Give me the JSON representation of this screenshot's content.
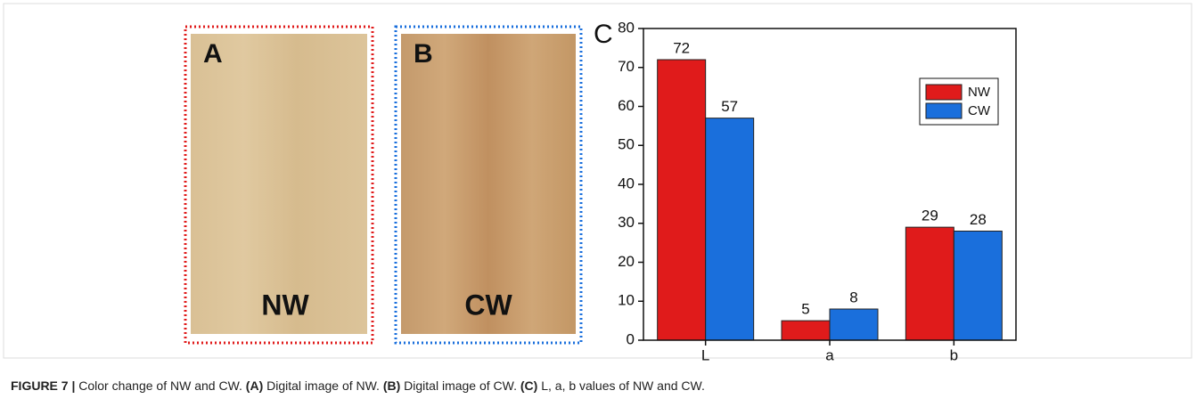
{
  "panels": [
    {
      "letter": "A",
      "label": "NW"
    },
    {
      "letter": "B",
      "label": "CW"
    }
  ],
  "chart_data": {
    "type": "bar",
    "letter": "C",
    "categories": [
      "L",
      "a",
      "b"
    ],
    "series": [
      {
        "name": "NW",
        "color": "#e01b1b",
        "values": [
          72,
          5,
          29
        ]
      },
      {
        "name": "CW",
        "color": "#1a6fdc",
        "values": [
          57,
          8,
          28
        ]
      }
    ],
    "ylim": [
      0,
      80
    ],
    "yticks": [
      0,
      10,
      20,
      30,
      40,
      50,
      60,
      70,
      80
    ],
    "legend": "upper right"
  },
  "caption": [
    {
      "text": "FIGURE 7 |",
      "bold": true
    },
    {
      "text": " Color change of NW and CW. ",
      "bold": false
    },
    {
      "text": "(A)",
      "bold": true
    },
    {
      "text": " Digital image of NW. ",
      "bold": false
    },
    {
      "text": "(B)",
      "bold": true
    },
    {
      "text": " Digital image of CW. ",
      "bold": false
    },
    {
      "text": "(C)",
      "bold": true
    },
    {
      "text": " L, a, b values of NW and CW.",
      "bold": false
    }
  ]
}
